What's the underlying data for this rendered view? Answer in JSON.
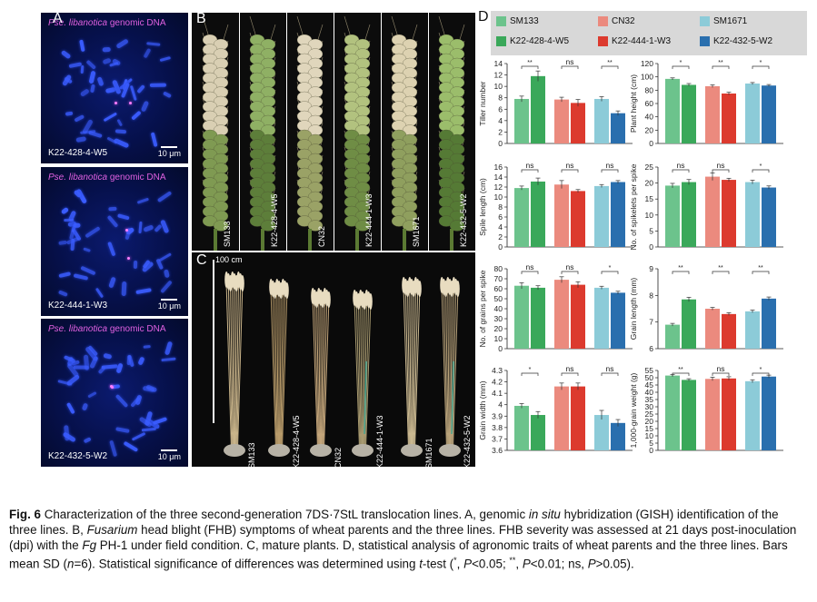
{
  "panels": {
    "A": {
      "letter": "A",
      "probe_italic": "Pse. libanotica",
      "probe_suffix": " genomic DNA",
      "scale": "10 μm",
      "lines": [
        "K22-428-4-W5",
        "K22-444-1-W3",
        "K22-432-5-W2"
      ]
    },
    "B": {
      "letter": "B",
      "labels": [
        "SM133",
        "K22-428-4-W5",
        "CN32",
        "K22-444-1-W3",
        "SM1671",
        "K22-432-5-W2"
      ]
    },
    "C": {
      "letter": "C",
      "ruler": "100 cm",
      "labels": [
        "SM133",
        "K22-428-4-W5",
        "CN32",
        "K22-444-1-W3",
        "SM1671",
        "K22-432-5-W2"
      ]
    },
    "D": {
      "letter": "D"
    }
  },
  "legend": [
    {
      "name": "SM133",
      "color": "#6cc38c"
    },
    {
      "name": "CN32",
      "color": "#eb8a7e"
    },
    {
      "name": "SM1671",
      "color": "#8ccbd8"
    },
    {
      "name": "K22-428-4-W5",
      "color": "#3aa85a"
    },
    {
      "name": "K22-444-1-W3",
      "color": "#dc3a2e"
    },
    {
      "name": "K22-432-5-W2",
      "color": "#2a6fae"
    }
  ],
  "chart_data": [
    {
      "type": "bar",
      "ylabel": "Tiller number",
      "ylim": [
        0,
        14
      ],
      "ticks": [
        0,
        2,
        4,
        6,
        8,
        10,
        12,
        14
      ],
      "values": [
        7.8,
        11.8,
        7.7,
        7.1,
        7.8,
        5.3
      ],
      "errors": [
        0.5,
        0.9,
        0.4,
        0.6,
        0.4,
        0.4
      ],
      "sig": [
        "**",
        "ns",
        "**"
      ]
    },
    {
      "type": "bar",
      "ylabel": "Plant height (cm)",
      "ylim": [
        0,
        120
      ],
      "ticks": [
        0,
        20,
        40,
        60,
        80,
        100,
        120
      ],
      "values": [
        97,
        88,
        86,
        75,
        90,
        87
      ],
      "errors": [
        1.5,
        2,
        2,
        2,
        1.5,
        1.5
      ],
      "sig": [
        "*",
        "**",
        "*"
      ]
    },
    {
      "type": "bar",
      "ylabel": "Spile length (cm)",
      "ylim": [
        0,
        16
      ],
      "ticks": [
        0,
        2,
        4,
        6,
        8,
        10,
        12,
        14,
        16
      ],
      "values": [
        11.8,
        13.1,
        12.5,
        11.2,
        12.2,
        13.0
      ],
      "errors": [
        0.4,
        0.7,
        0.8,
        0.3,
        0.3,
        0.3
      ],
      "sig": [
        "ns",
        "ns",
        "ns"
      ]
    },
    {
      "type": "bar",
      "ylabel": "No. of spikelets per spike",
      "ylim": [
        0,
        25
      ],
      "ticks": [
        0,
        5,
        10,
        15,
        20,
        25
      ],
      "values": [
        19.2,
        20.3,
        22.0,
        21.0,
        20.3,
        18.6
      ],
      "errors": [
        0.7,
        0.8,
        1.2,
        0.5,
        0.6,
        0.5
      ],
      "sig": [
        "ns",
        "ns",
        "*"
      ]
    },
    {
      "type": "bar",
      "ylabel": "No. of grains per spike",
      "ylim": [
        0,
        80
      ],
      "ticks": [
        0,
        10,
        20,
        30,
        40,
        50,
        60,
        70,
        80
      ],
      "values": [
        63,
        61,
        69,
        64,
        61,
        56
      ],
      "errors": [
        3,
        2,
        3,
        3,
        1.5,
        1.5
      ],
      "sig": [
        "ns",
        "ns",
        "*"
      ]
    },
    {
      "type": "bar",
      "ylabel": "Grain length (mm)",
      "ylim": [
        6,
        9
      ],
      "ticks": [
        6,
        7,
        8,
        9
      ],
      "values": [
        6.9,
        7.85,
        7.5,
        7.3,
        7.4,
        7.88
      ],
      "errors": [
        0.05,
        0.08,
        0.05,
        0.05,
        0.05,
        0.06
      ],
      "sig": [
        "**",
        "**",
        "**"
      ]
    },
    {
      "type": "bar",
      "ylabel": "Grain width (mm)",
      "ylim": [
        3.6,
        4.3
      ],
      "ticks": [
        3.6,
        3.7,
        3.8,
        3.9,
        4.0,
        4.1,
        4.2,
        4.3
      ],
      "values": [
        3.99,
        3.91,
        4.16,
        4.16,
        3.91,
        3.84
      ],
      "errors": [
        0.02,
        0.03,
        0.03,
        0.03,
        0.04,
        0.03
      ],
      "sig": [
        "*",
        "ns",
        "ns"
      ]
    },
    {
      "type": "bar",
      "ylabel": "1,000-grain weight (g)",
      "ylim": [
        0,
        55
      ],
      "ticks": [
        0,
        5,
        10,
        15,
        20,
        25,
        30,
        35,
        40,
        45,
        50,
        55
      ],
      "values": [
        51.5,
        48.5,
        49.2,
        49.5,
        47.6,
        50.8
      ],
      "errors": [
        0.8,
        0.8,
        1.2,
        1.2,
        1.0,
        1.0
      ],
      "sig": [
        "**",
        "ns",
        "*"
      ]
    }
  ],
  "caption": {
    "fig": "Fig. 6",
    "t1": "  Characterization of the three second-generation 7DS·7StL translocation lines.  A, genomic ",
    "t1i": "in situ",
    "t2": " hybridization (GISH) identification of the three lines.  B, ",
    "t2i": "Fusarium",
    "t3": " head blight (FHB) symptoms of wheat parents and the three lines.  FHB severity was assessed at 21 days post-inoculation (dpi) with the ",
    "t3i": "Fg",
    "t4": " PH-1 under field condition.  C, mature plants.  D, statistical analysis of agronomic traits of wheat parents and the three lines.  Bars mean SD (",
    "t4i": "n",
    "t5": "=6).  Statistical significance of differences was determined using ",
    "t5i": "t",
    "t6": "-test (",
    "t6a": "*",
    "t6b": ", ",
    "t6i1": "P",
    "t6c": "<0.05; ",
    "t6d": "**",
    "t6e": ", ",
    "t6i2": "P",
    "t6f": "<0.01; ns, ",
    "t6i3": "P",
    "t6g": ">0.05)."
  }
}
